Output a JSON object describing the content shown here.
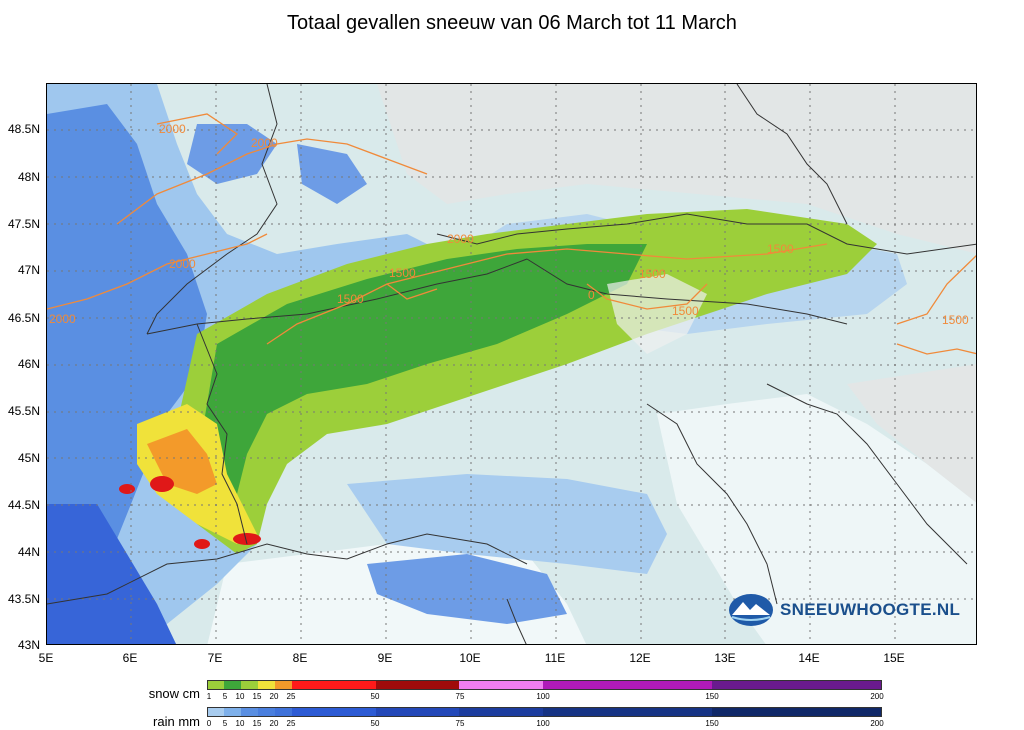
{
  "title": "Totaal gevallen sneeuw van 06 March tot 11 March",
  "map": {
    "lat_labels": [
      "48.5N",
      "48N",
      "47.5N",
      "47N",
      "46.5N",
      "46N",
      "45.5N",
      "45N",
      "44.5N",
      "44N",
      "43.5N",
      "43N"
    ],
    "lon_labels": [
      "5E",
      "6E",
      "7E",
      "8E",
      "9E",
      "10E",
      "11E",
      "12E",
      "13E",
      "14E",
      "15E"
    ],
    "contour_labels": [
      "2000",
      "2000",
      "2000",
      "2000",
      "2000",
      "1500",
      "1500",
      "1500",
      "1500",
      "0",
      "1500",
      "1500"
    ],
    "colors": {
      "sea": "#e6f2f3",
      "land_dry": "#d9eaeb",
      "rain_light": "#9fc7ee",
      "rain_mid": "#5a8fe2",
      "rain_heavy": "#3765d8",
      "snow_low": "#9ccf3a",
      "snow_mid": "#3ea63a",
      "snow_high": "#f0e23a",
      "snow_orange": "#f39a2a",
      "snow_red": "#e01818",
      "contour": "#f08a3a"
    }
  },
  "logo": {
    "text": "SNEEUWHOOGTE.NL",
    "icon": "mountain-globe-icon"
  },
  "legend": {
    "snow_label": "snow cm",
    "rain_label": "rain mm",
    "snow_ticks": [
      "1",
      "5",
      "10",
      "15",
      "20",
      "25",
      "50",
      "75",
      "100",
      "150",
      "200"
    ],
    "rain_ticks": [
      "0",
      "5",
      "10",
      "15",
      "20",
      "25",
      "50",
      "75",
      "100",
      "150",
      "200"
    ]
  }
}
